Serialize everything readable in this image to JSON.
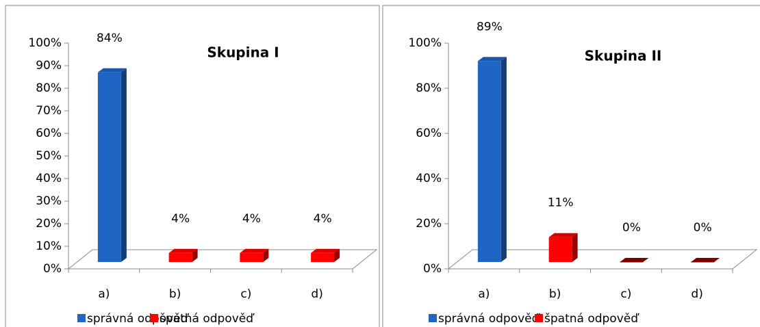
{
  "chart_data": [
    {
      "type": "bar",
      "title": "Skupina I",
      "categories": [
        "a)",
        "b)",
        "c)",
        "d)"
      ],
      "values": [
        84,
        4,
        4,
        4
      ],
      "value_labels": [
        "84%",
        "4%",
        "4%",
        "4%"
      ],
      "bar_colors": [
        "#1f66c4",
        "#ff0000",
        "#ff0000",
        "#ff0000"
      ],
      "legend": [
        {
          "name": "správná odpověď",
          "color": "#1f66c4"
        },
        {
          "name": "špatná odpověď",
          "color": "#ff0000"
        }
      ],
      "ylim": [
        0,
        100
      ],
      "yticks": [
        {
          "value": 0,
          "label": "0%"
        },
        {
          "value": 10,
          "label": "10%"
        },
        {
          "value": 20,
          "label": "20%"
        },
        {
          "value": 30,
          "label": "30%"
        },
        {
          "value": 40,
          "label": "40%"
        },
        {
          "value": 50,
          "label": "50%"
        },
        {
          "value": 60,
          "label": "60%"
        },
        {
          "value": 70,
          "label": "70%"
        },
        {
          "value": 80,
          "label": "80%"
        },
        {
          "value": 90,
          "label": "90%"
        },
        {
          "value": 100,
          "label": "100%"
        }
      ]
    },
    {
      "type": "bar",
      "title": "Skupina II",
      "categories": [
        "a)",
        "b)",
        "c)",
        "d)"
      ],
      "values": [
        89,
        11,
        0,
        0
      ],
      "value_labels": [
        "89%",
        "11%",
        "0%",
        "0%"
      ],
      "bar_colors": [
        "#1f66c4",
        "#ff0000",
        "#ff0000",
        "#ff0000"
      ],
      "legend": [
        {
          "name": "správná odpověď",
          "color": "#1f66c4"
        },
        {
          "name": "špatná odpověď",
          "color": "#ff0000"
        }
      ],
      "ylim": [
        0,
        100
      ],
      "yticks": [
        {
          "value": 0,
          "label": "0%"
        },
        {
          "value": 20,
          "label": "20%"
        },
        {
          "value": 40,
          "label": "40%"
        },
        {
          "value": 60,
          "label": "60%"
        },
        {
          "value": 80,
          "label": "80%"
        },
        {
          "value": 100,
          "label": "100%"
        }
      ]
    }
  ]
}
